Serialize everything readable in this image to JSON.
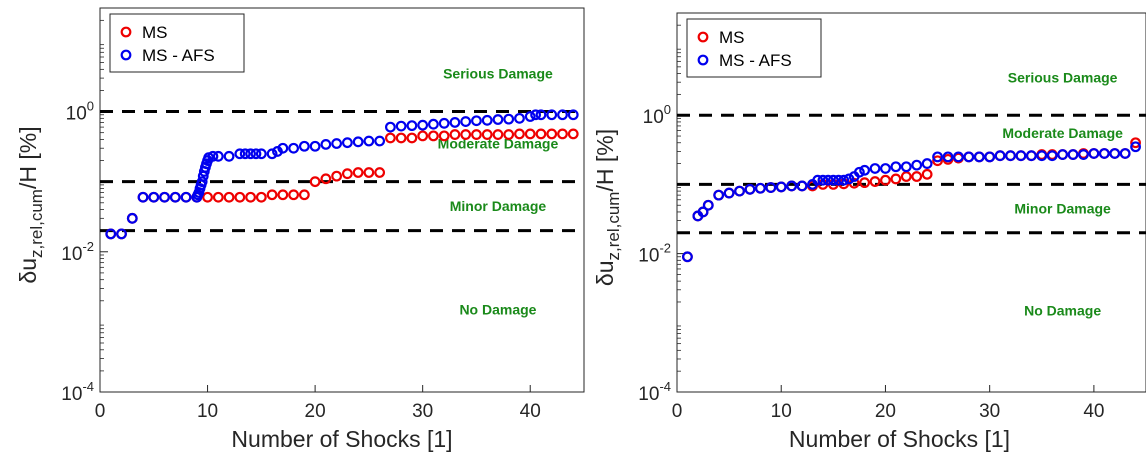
{
  "chart_data": [
    {
      "type": "scatter",
      "xlabel": "Number of Shocks [1]",
      "ylabel": {
        "main": "δu",
        "sub": "z,rel,cum",
        "tail": "/H [%]"
      },
      "xlim": [
        0,
        45
      ],
      "ylim": [
        0.0001,
        30
      ],
      "yscale": "log",
      "xticks": [
        0,
        10,
        20,
        30,
        40
      ],
      "yticks": [
        {
          "value": 0.0001,
          "base": "10",
          "exp": "-4"
        },
        {
          "value": 0.01,
          "base": "10",
          "exp": "-2"
        },
        {
          "value": 1,
          "base": "10",
          "exp": "0"
        }
      ],
      "legend": {
        "location": "top-left",
        "entries": [
          "MS",
          "MS - AFS"
        ]
      },
      "thresholds": [
        1,
        0.1,
        0.02
      ],
      "zones": [
        {
          "label": "Serious Damage",
          "x": 37,
          "y": 3.5
        },
        {
          "label": "Moderate Damage",
          "x": 37,
          "y": 0.35
        },
        {
          "label": "Minor Damage",
          "x": 37,
          "y": 0.045
        },
        {
          "label": "No Damage",
          "x": 37,
          "y": 0.0015
        }
      ],
      "series": [
        {
          "name": "MS",
          "color": "#ee0000",
          "points": [
            [
              1,
              0.018
            ],
            [
              2,
              0.018
            ],
            [
              3,
              0.03
            ],
            [
              4,
              0.06
            ],
            [
              5,
              0.06
            ],
            [
              6,
              0.06
            ],
            [
              7,
              0.06
            ],
            [
              8,
              0.06
            ],
            [
              9,
              0.06
            ],
            [
              10,
              0.06
            ],
            [
              11,
              0.06
            ],
            [
              12,
              0.06
            ],
            [
              13,
              0.06
            ],
            [
              14,
              0.06
            ],
            [
              15,
              0.06
            ],
            [
              16,
              0.065
            ],
            [
              17,
              0.065
            ],
            [
              18,
              0.065
            ],
            [
              19,
              0.065
            ],
            [
              20,
              0.1
            ],
            [
              21,
              0.11
            ],
            [
              22,
              0.12
            ],
            [
              23,
              0.13
            ],
            [
              24,
              0.135
            ],
            [
              25,
              0.135
            ],
            [
              26,
              0.135
            ],
            [
              27,
              0.42
            ],
            [
              28,
              0.42
            ],
            [
              29,
              0.42
            ],
            [
              30,
              0.45
            ],
            [
              31,
              0.45
            ],
            [
              32,
              0.45
            ],
            [
              33,
              0.47
            ],
            [
              34,
              0.47
            ],
            [
              35,
              0.47
            ],
            [
              36,
              0.47
            ],
            [
              37,
              0.47
            ],
            [
              38,
              0.47
            ],
            [
              39,
              0.48
            ],
            [
              40,
              0.48
            ],
            [
              41,
              0.48
            ],
            [
              42,
              0.48
            ],
            [
              43,
              0.48
            ],
            [
              44,
              0.48
            ]
          ]
        },
        {
          "name": "MS - AFS",
          "color": "#0000ee",
          "points": [
            [
              1,
              0.018
            ],
            [
              2,
              0.018
            ],
            [
              3,
              0.03
            ],
            [
              4,
              0.06
            ],
            [
              5,
              0.06
            ],
            [
              6,
              0.06
            ],
            [
              7,
              0.06
            ],
            [
              8,
              0.06
            ],
            [
              9,
              0.06
            ],
            [
              9.1,
              0.065
            ],
            [
              9.2,
              0.07
            ],
            [
              9.3,
              0.08
            ],
            [
              9.4,
              0.09
            ],
            [
              9.5,
              0.1
            ],
            [
              9.6,
              0.12
            ],
            [
              9.7,
              0.14
            ],
            [
              9.8,
              0.16
            ],
            [
              9.9,
              0.18
            ],
            [
              10,
              0.2
            ],
            [
              10.1,
              0.22
            ],
            [
              10.5,
              0.23
            ],
            [
              11,
              0.23
            ],
            [
              12,
              0.23
            ],
            [
              13,
              0.25
            ],
            [
              13.5,
              0.25
            ],
            [
              14,
              0.25
            ],
            [
              14.5,
              0.25
            ],
            [
              15,
              0.25
            ],
            [
              16,
              0.25
            ],
            [
              16.5,
              0.27
            ],
            [
              17,
              0.3
            ],
            [
              18,
              0.3
            ],
            [
              19,
              0.32
            ],
            [
              20,
              0.32
            ],
            [
              21,
              0.34
            ],
            [
              22,
              0.35
            ],
            [
              23,
              0.36
            ],
            [
              24,
              0.37
            ],
            [
              25,
              0.38
            ],
            [
              26,
              0.38
            ],
            [
              27,
              0.6
            ],
            [
              28,
              0.62
            ],
            [
              29,
              0.63
            ],
            [
              30,
              0.64
            ],
            [
              31,
              0.66
            ],
            [
              32,
              0.68
            ],
            [
              33,
              0.7
            ],
            [
              34,
              0.72
            ],
            [
              35,
              0.74
            ],
            [
              36,
              0.75
            ],
            [
              37,
              0.77
            ],
            [
              38,
              0.78
            ],
            [
              39,
              0.8
            ],
            [
              40,
              0.85
            ],
            [
              40.5,
              0.9
            ],
            [
              41,
              0.9
            ],
            [
              42,
              0.9
            ],
            [
              43,
              0.9
            ],
            [
              44,
              0.9
            ]
          ]
        }
      ]
    },
    {
      "type": "scatter",
      "xlabel": "Number of Shocks [1]",
      "ylabel": {
        "main": "δu",
        "sub": "z,rel,cum",
        "tail": "/H [%]"
      },
      "xlim": [
        0,
        45
      ],
      "ylim": [
        0.0001,
        30
      ],
      "yscale": "log",
      "xticks": [
        0,
        10,
        20,
        30,
        40
      ],
      "yticks": [
        {
          "value": 0.0001,
          "base": "10",
          "exp": "-4"
        },
        {
          "value": 0.01,
          "base": "10",
          "exp": "-2"
        },
        {
          "value": 1,
          "base": "10",
          "exp": "0"
        }
      ],
      "legend": {
        "location": "top-left",
        "entries": [
          "MS",
          "MS - AFS"
        ]
      },
      "thresholds": [
        1,
        0.1,
        0.02
      ],
      "zones": [
        {
          "label": "Serious Damage",
          "x": 37,
          "y": 3.5
        },
        {
          "label": "Moderate Damage",
          "x": 37,
          "y": 0.55
        },
        {
          "label": "Minor Damage",
          "x": 37,
          "y": 0.045
        },
        {
          "label": "No Damage",
          "x": 37,
          "y": 0.0015
        }
      ],
      "series": [
        {
          "name": "MS",
          "color": "#ee0000",
          "points": [
            [
              1,
              0.009
            ],
            [
              2,
              0.035
            ],
            [
              2.5,
              0.04
            ],
            [
              3,
              0.05
            ],
            [
              4,
              0.07
            ],
            [
              5,
              0.075
            ],
            [
              6,
              0.08
            ],
            [
              7,
              0.085
            ],
            [
              8,
              0.088
            ],
            [
              9,
              0.09
            ],
            [
              10,
              0.092
            ],
            [
              11,
              0.095
            ],
            [
              12,
              0.095
            ],
            [
              13,
              0.095
            ],
            [
              14,
              0.1
            ],
            [
              15,
              0.1
            ],
            [
              16,
              0.102
            ],
            [
              17,
              0.104
            ],
            [
              18,
              0.106
            ],
            [
              19,
              0.11
            ],
            [
              20,
              0.115
            ],
            [
              21,
              0.12
            ],
            [
              22,
              0.13
            ],
            [
              23,
              0.13
            ],
            [
              24,
              0.14
            ],
            [
              25,
              0.22
            ],
            [
              26,
              0.23
            ],
            [
              27,
              0.24
            ],
            [
              28,
              0.25
            ],
            [
              29,
              0.25
            ],
            [
              30,
              0.25
            ],
            [
              31,
              0.26
            ],
            [
              32,
              0.26
            ],
            [
              33,
              0.26
            ],
            [
              34,
              0.26
            ],
            [
              35,
              0.27
            ],
            [
              36,
              0.27
            ],
            [
              37,
              0.27
            ],
            [
              38,
              0.27
            ],
            [
              39,
              0.28
            ],
            [
              40,
              0.28
            ],
            [
              41,
              0.28
            ],
            [
              42,
              0.28
            ],
            [
              43,
              0.28
            ],
            [
              44,
              0.4
            ]
          ]
        },
        {
          "name": "MS - AFS",
          "color": "#0000ee",
          "points": [
            [
              1,
              0.009
            ],
            [
              2,
              0.035
            ],
            [
              2.5,
              0.04
            ],
            [
              3,
              0.05
            ],
            [
              4,
              0.07
            ],
            [
              5,
              0.075
            ],
            [
              6,
              0.08
            ],
            [
              7,
              0.085
            ],
            [
              8,
              0.088
            ],
            [
              9,
              0.09
            ],
            [
              10,
              0.092
            ],
            [
              11,
              0.095
            ],
            [
              12,
              0.095
            ],
            [
              13,
              0.1
            ],
            [
              13.5,
              0.115
            ],
            [
              14,
              0.115
            ],
            [
              14.5,
              0.115
            ],
            [
              15,
              0.115
            ],
            [
              15.5,
              0.115
            ],
            [
              16,
              0.115
            ],
            [
              16.5,
              0.12
            ],
            [
              17,
              0.13
            ],
            [
              17.5,
              0.15
            ],
            [
              18,
              0.16
            ],
            [
              19,
              0.17
            ],
            [
              20,
              0.17
            ],
            [
              21,
              0.18
            ],
            [
              22,
              0.18
            ],
            [
              23,
              0.19
            ],
            [
              24,
              0.2
            ],
            [
              25,
              0.25
            ],
            [
              26,
              0.25
            ],
            [
              27,
              0.25
            ],
            [
              28,
              0.25
            ],
            [
              29,
              0.25
            ],
            [
              30,
              0.25
            ],
            [
              31,
              0.26
            ],
            [
              32,
              0.26
            ],
            [
              33,
              0.26
            ],
            [
              34,
              0.26
            ],
            [
              35,
              0.26
            ],
            [
              36,
              0.26
            ],
            [
              37,
              0.27
            ],
            [
              38,
              0.27
            ],
            [
              39,
              0.27
            ],
            [
              40,
              0.28
            ],
            [
              41,
              0.28
            ],
            [
              42,
              0.28
            ],
            [
              43,
              0.28
            ],
            [
              44,
              0.35
            ]
          ]
        }
      ]
    }
  ]
}
